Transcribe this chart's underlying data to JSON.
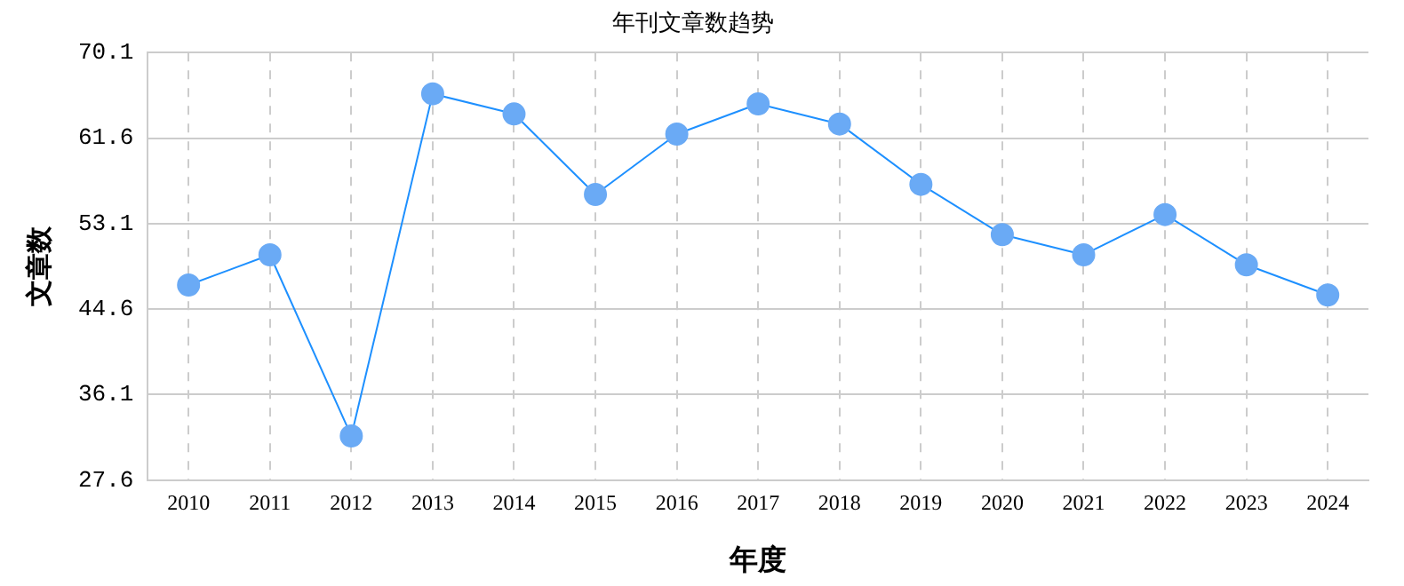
{
  "chart_data": {
    "type": "line",
    "title": "年刊文章数趋势",
    "xlabel": "年度",
    "ylabel": "文章数",
    "categories": [
      "2010",
      "2011",
      "2012",
      "2013",
      "2014",
      "2015",
      "2016",
      "2017",
      "2018",
      "2019",
      "2020",
      "2021",
      "2022",
      "2023",
      "2024"
    ],
    "series": [
      {
        "color": "#1e90ff",
        "values": [
          47,
          50,
          32,
          66,
          64,
          56,
          62,
          65,
          63,
          57,
          52,
          50,
          54,
          49,
          46
        ]
      }
    ],
    "ylim": [
      27.6,
      70.1
    ],
    "yticks": [
      27.6,
      36.1,
      44.6,
      53.1,
      61.6,
      70.1
    ],
    "grid": true,
    "legend": false,
    "marker": "circle",
    "line_style": "solid"
  }
}
